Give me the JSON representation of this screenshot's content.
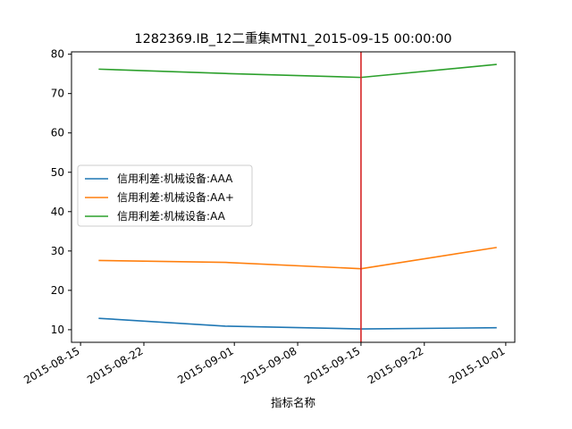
{
  "chart_data": {
    "type": "line",
    "title": "1282369.IB_12二重集MTN1_2015-09-15 00:00:00",
    "xlabel": "指标名称",
    "ylabel": "",
    "x_axis_type": "date",
    "xlim": [
      "2015-08-14",
      "2015-10-02"
    ],
    "ylim": [
      6.8,
      80.6
    ],
    "x_ticks": [
      "2015-08-15",
      "2015-08-22",
      "2015-09-01",
      "2015-09-08",
      "2015-09-15",
      "2015-09-22",
      "2015-10-01"
    ],
    "y_ticks": [
      10,
      20,
      30,
      40,
      50,
      60,
      70,
      80
    ],
    "grid": false,
    "legend_position": "center-left",
    "vline": {
      "x": "2015-09-15",
      "color": "#d62728"
    },
    "x": [
      "2015-08-17",
      "2015-08-31",
      "2015-09-15",
      "2015-09-30"
    ],
    "series": [
      {
        "name": "信用利差:机械设备:AAA",
        "color": "#1f77b4",
        "values": [
          12.9,
          10.9,
          10.2,
          10.5
        ]
      },
      {
        "name": "信用利差:机械设备:AA+",
        "color": "#ff7f0e",
        "values": [
          27.6,
          27.1,
          25.5,
          30.9
        ]
      },
      {
        "name": "信用利差:机械设备:AA",
        "color": "#2ca02c",
        "values": [
          76.2,
          75.1,
          74.1,
          77.4
        ]
      }
    ]
  }
}
